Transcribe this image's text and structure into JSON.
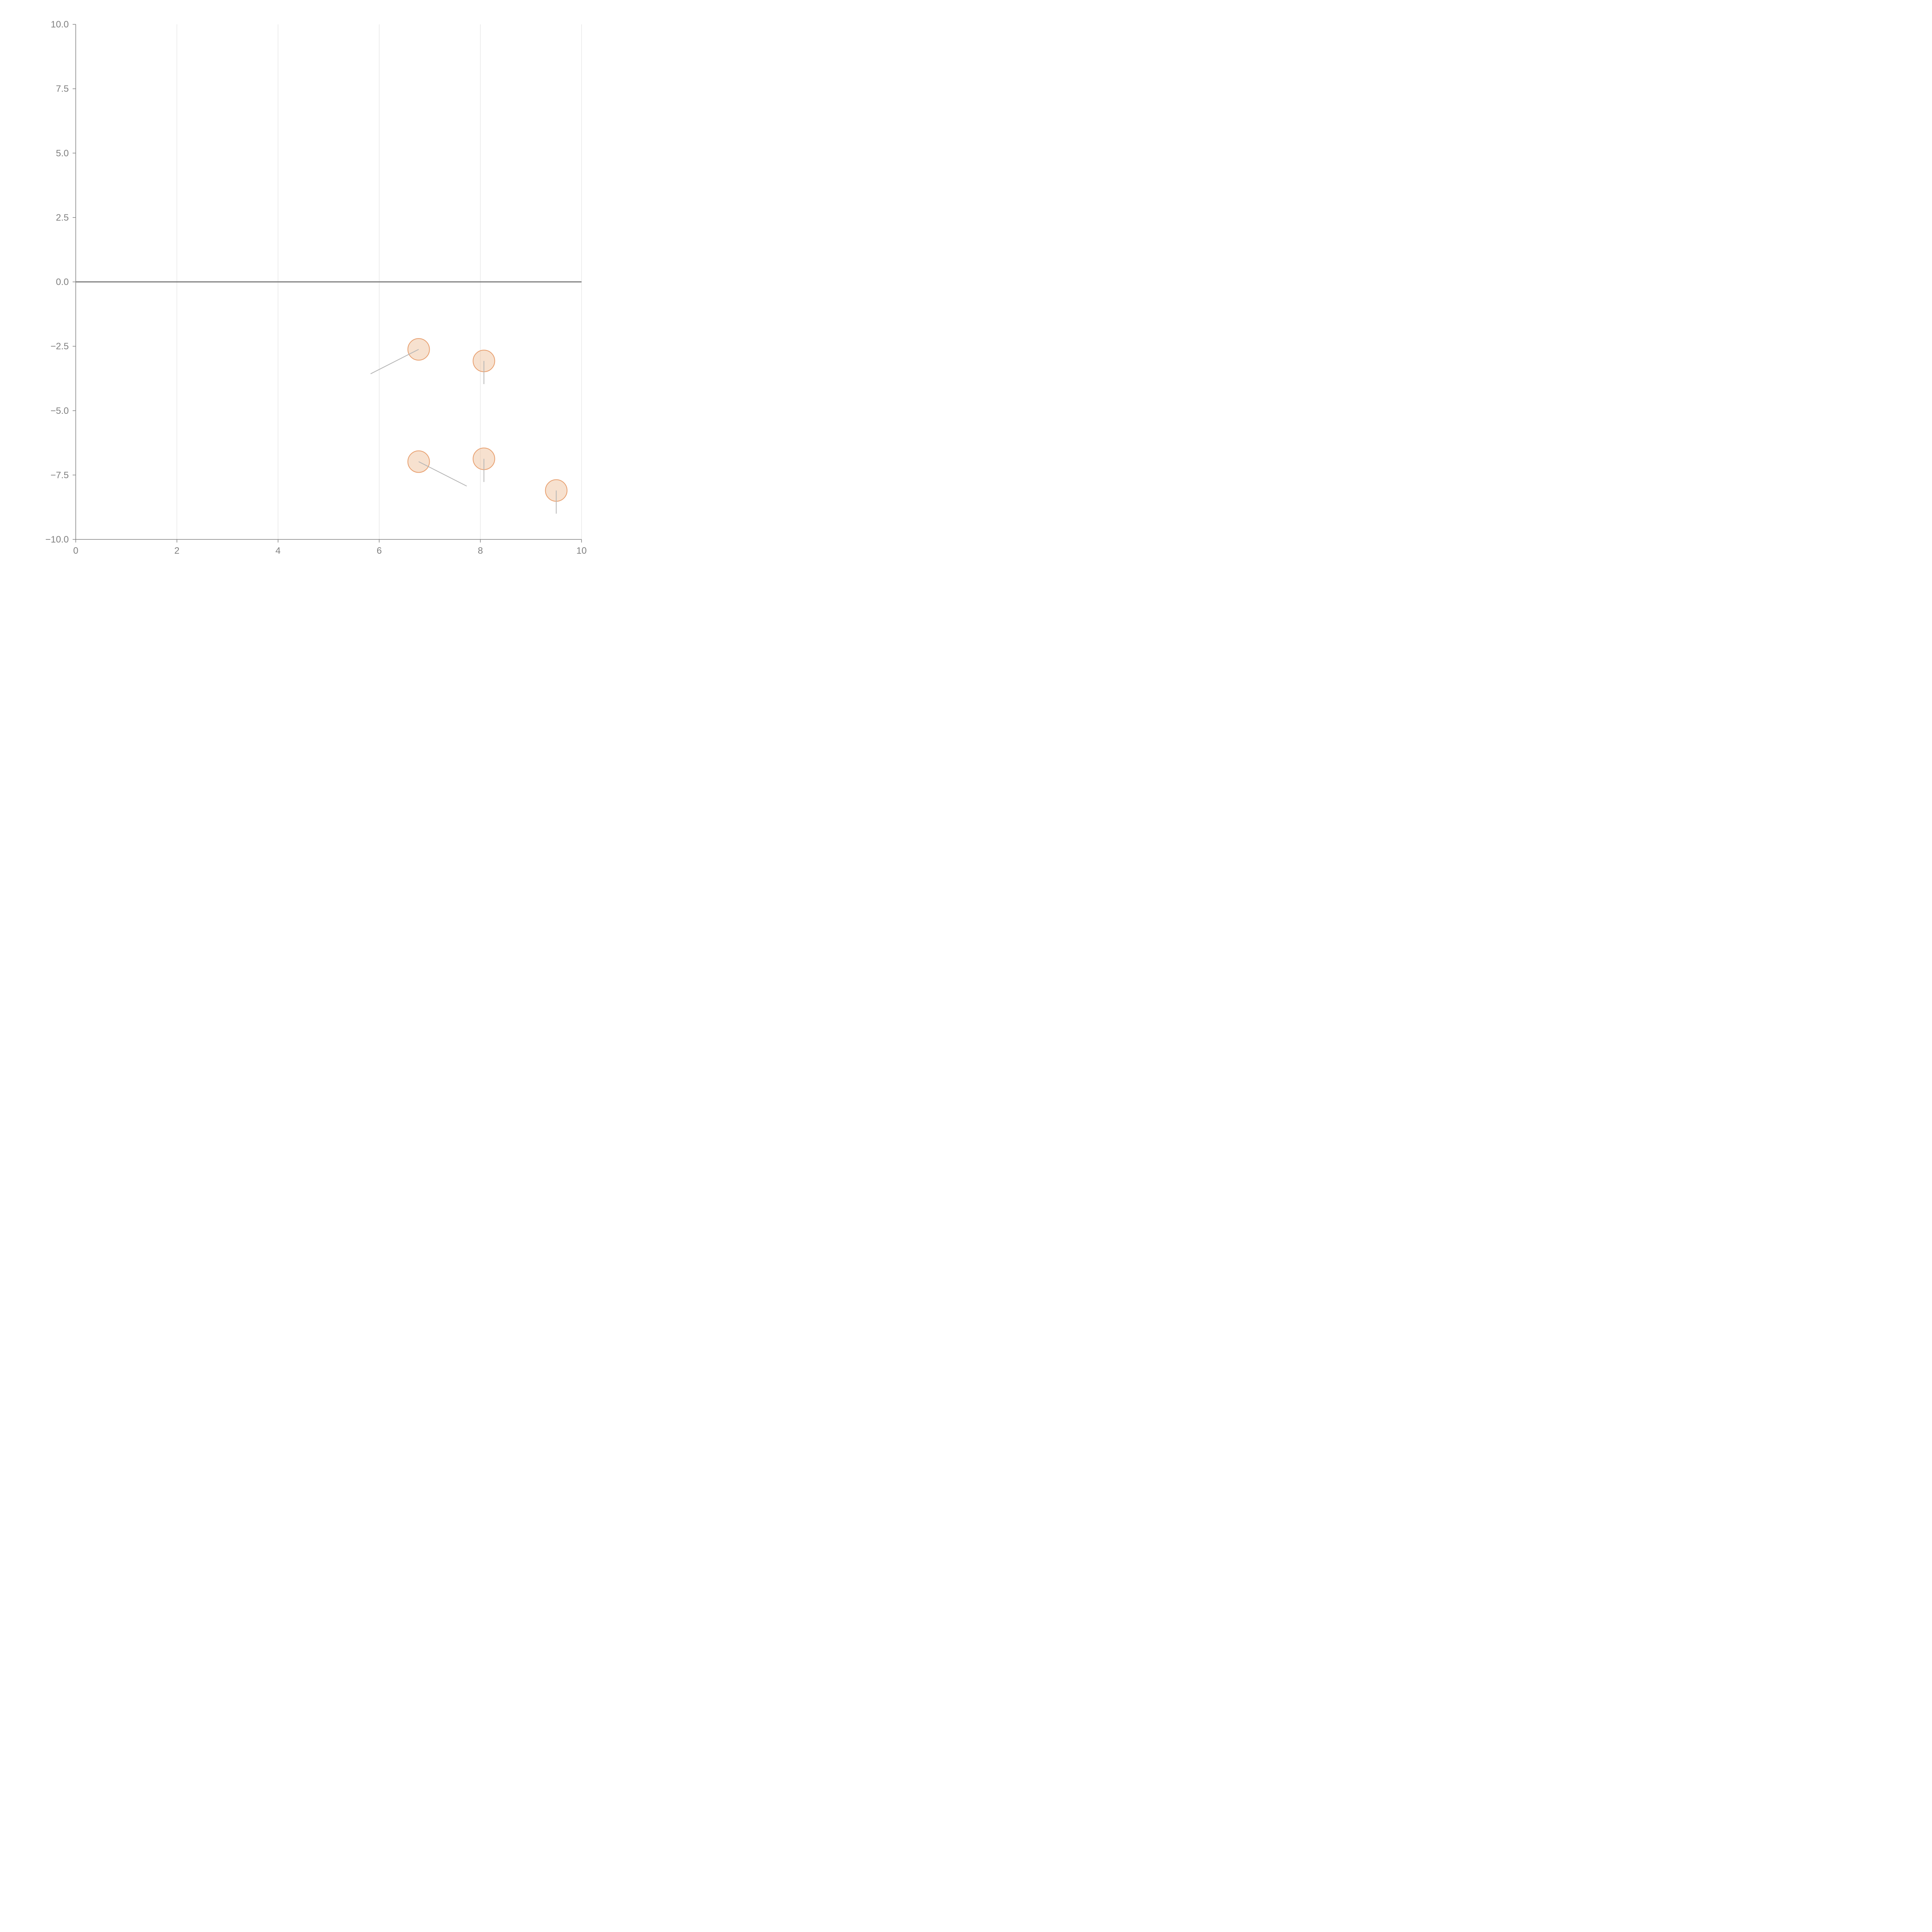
{
  "chart_data": {
    "type": "scatter",
    "title": "",
    "xlabel": "",
    "ylabel": "",
    "xlim": [
      0,
      10
    ],
    "ylim": [
      -10,
      10
    ],
    "x_ticks": [
      0,
      2,
      4,
      6,
      8,
      10
    ],
    "x_tick_labels": [
      "0",
      "2",
      "4",
      "6",
      "8",
      "10"
    ],
    "y_ticks": [
      10,
      7.5,
      5,
      2.5,
      0,
      -2.5,
      -5,
      -7.5,
      -10
    ],
    "y_tick_labels": [
      "10.0",
      "7.5",
      "5.0",
      "2.5",
      "0.0",
      "−2.5",
      "−5.0",
      "−7.5",
      "−10.0"
    ],
    "vertical_grid": true,
    "horizontal_grid": false,
    "zero_line": true,
    "colors": {
      "bubble_fill": "#f0c8a8",
      "bubble_stroke": "#e8a070",
      "vector": "#b5b5b5",
      "axis": "#808080",
      "grid": "#dddddd"
    },
    "points": [
      {
        "x": 6.78,
        "y": -2.62,
        "dx": -0.95,
        "dy": -0.95
      },
      {
        "x": 8.07,
        "y": -3.07,
        "dx": 0.0,
        "dy": -0.9
      },
      {
        "x": 6.78,
        "y": -6.98,
        "dx": 0.95,
        "dy": -0.95
      },
      {
        "x": 8.07,
        "y": -6.87,
        "dx": 0.0,
        "dy": -0.9
      },
      {
        "x": 9.5,
        "y": -8.1,
        "dx": 0.0,
        "dy": -0.9
      }
    ]
  }
}
